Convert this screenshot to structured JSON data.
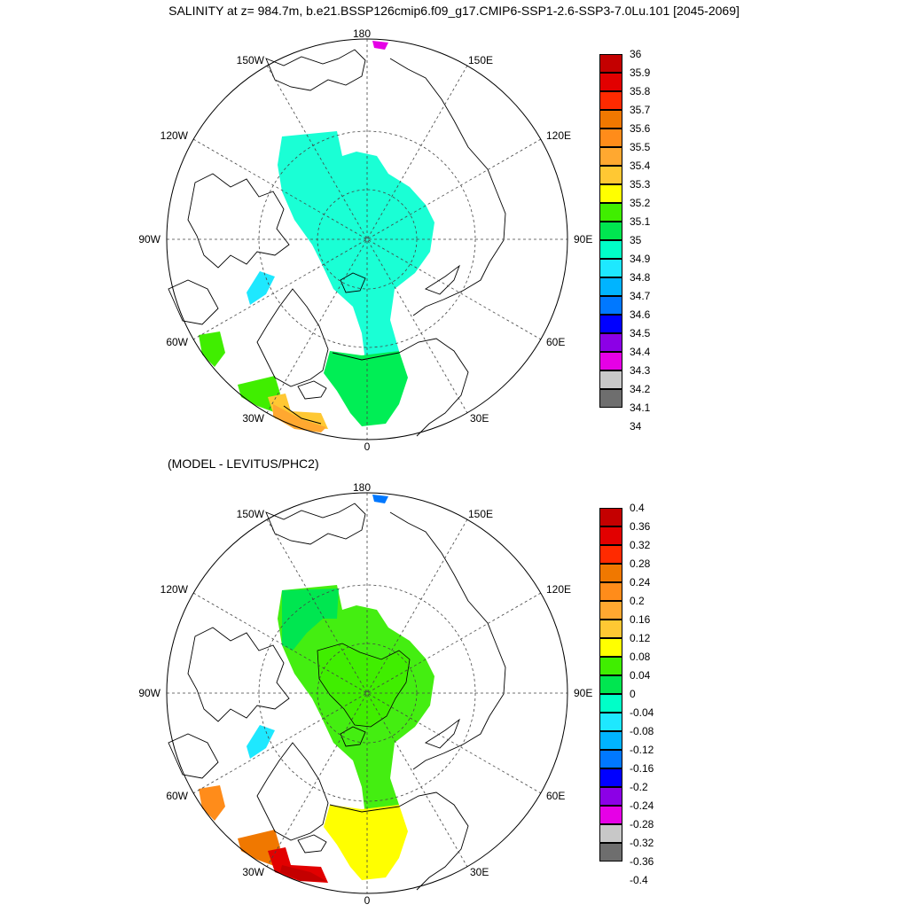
{
  "title": "SALINITY at z= 984.7m, b.e21.BSSP126cmip6.f09_g17.CMIP6-SSP1-2.6-SSP3-7.0Lu.101 [2045-2069]",
  "subtitle": "(MODEL - LEVITUS/PHC2)",
  "longitude_labels": {
    "top": "180",
    "bottom": "0",
    "left": "90W",
    "right": "90E",
    "upper_left_1": "150W",
    "upper_left_2": "120W",
    "lower_left_1": "60W",
    "lower_left_2": "30W",
    "upper_right_1": "150E",
    "upper_right_2": "120E",
    "lower_right_1": "60E",
    "lower_right_2": "30E"
  },
  "top_colorbar": {
    "labels": [
      "36",
      "35.9",
      "35.8",
      "35.7",
      "35.6",
      "35.5",
      "35.4",
      "35.3",
      "35.2",
      "35.1",
      "35",
      "34.9",
      "34.8",
      "34.7",
      "34.6",
      "34.5",
      "34.4",
      "34.3",
      "34.2",
      "34.1",
      "34"
    ],
    "colors": [
      "#c40000",
      "#e20000",
      "#ff2a00",
      "#f07800",
      "#ff8c1a",
      "#ffa830",
      "#ffc833",
      "#ffff00",
      "#40ee00",
      "#00e650",
      "#00ffc8",
      "#1ee8ff",
      "#00b4ff",
      "#0078ff",
      "#0000ff",
      "#8c00e6",
      "#e600e6",
      "#c8c8c8",
      "#6e6e6e"
    ]
  },
  "bottom_colorbar": {
    "labels": [
      "0.4",
      "0.36",
      "0.32",
      "0.28",
      "0.24",
      "0.2",
      "0.16",
      "0.12",
      "0.08",
      "0.04",
      "0",
      "-0.04",
      "-0.08",
      "-0.12",
      "-0.16",
      "-0.2",
      "-0.24",
      "-0.28",
      "-0.32",
      "-0.36",
      "-0.4"
    ],
    "colors": [
      "#c40000",
      "#e20000",
      "#ff2a00",
      "#f07800",
      "#ff8c1a",
      "#ffa830",
      "#ffc833",
      "#ffff00",
      "#40ee00",
      "#00e650",
      "#00ffc8",
      "#1ee8ff",
      "#00b4ff",
      "#0078ff",
      "#0000ff",
      "#8c00e6",
      "#e600e6",
      "#c8c8c8",
      "#6e6e6e"
    ]
  },
  "colors": {
    "salinity_arctic_fill": "#1affd5",
    "salinity_nordic_fill": "#00ee55",
    "salinity_atlantic_fill": "#ffc833",
    "anomaly_arctic_fill": "#44ee11",
    "anomaly_nordic_fill": "#ffff00",
    "anomaly_atlantic_fill": "#e20000",
    "anomaly_labrador_fill": "#ff8c1a"
  }
}
